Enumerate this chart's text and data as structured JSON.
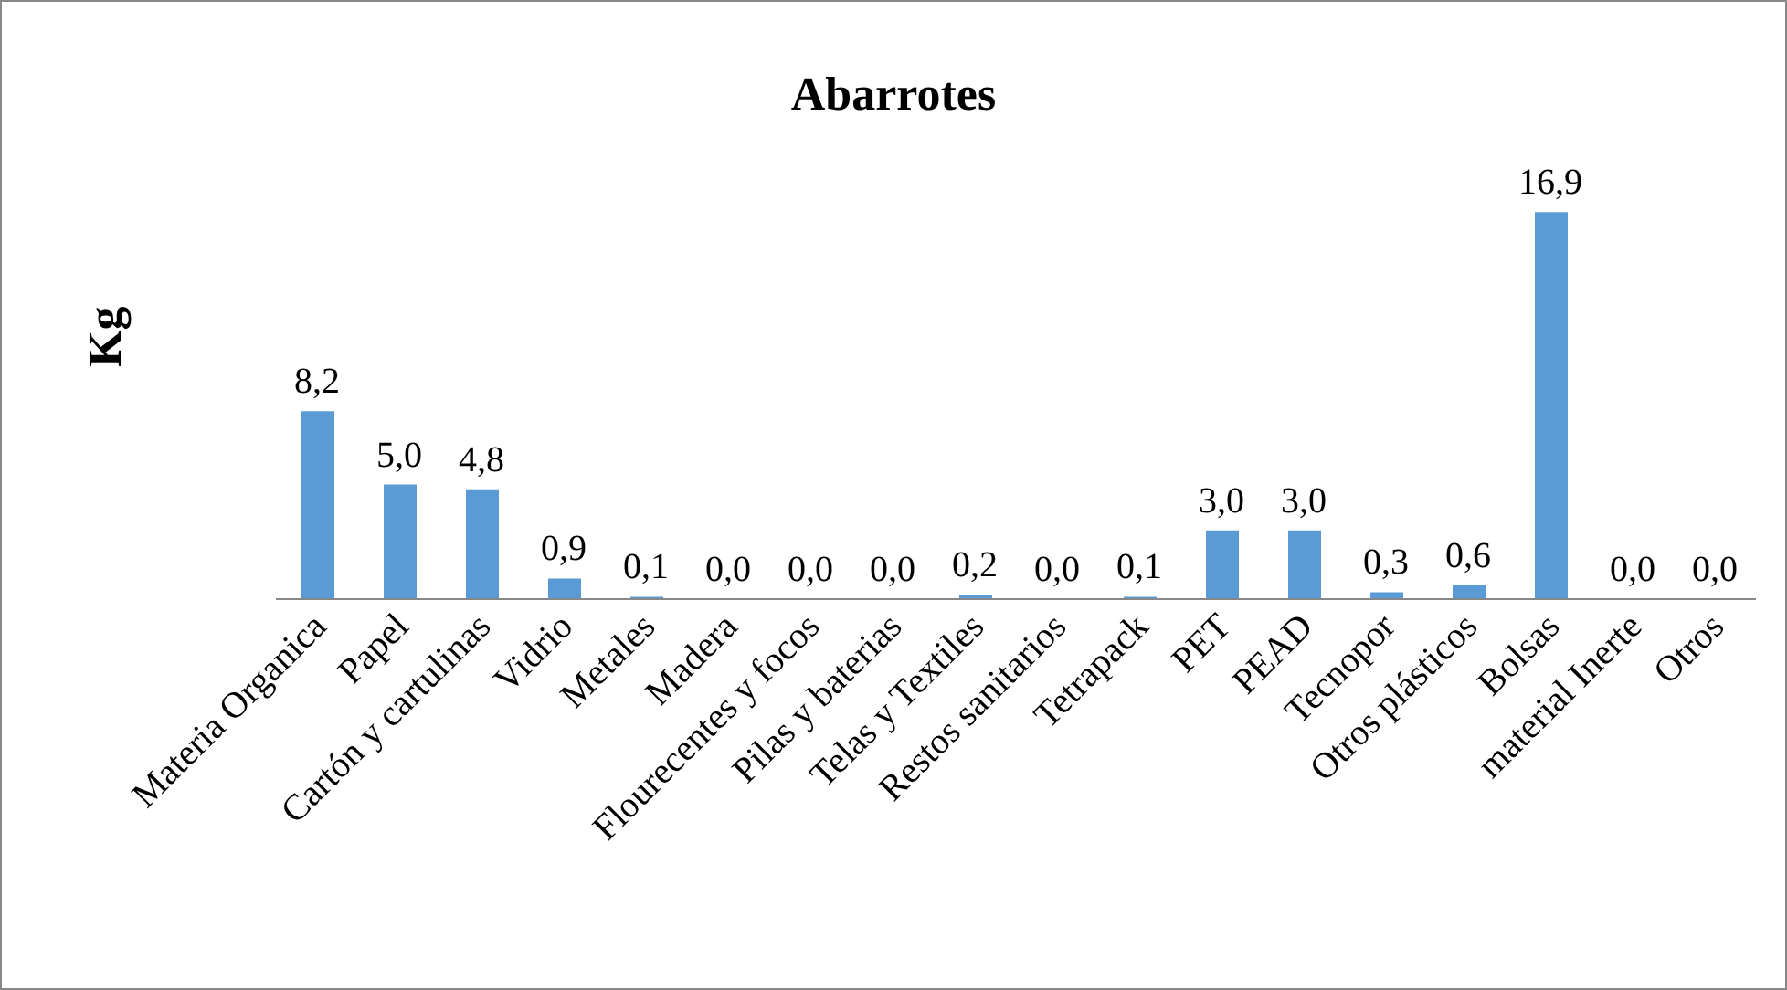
{
  "chart_data": {
    "type": "bar",
    "title": "Abarrotes",
    "ylabel": "Kg",
    "categories": [
      "Materia Organica",
      "Papel",
      "Cartón y cartulinas",
      "Vidrio",
      "Metales",
      "Madera",
      "Flourecentes y focos",
      "Pilas y baterias",
      "Telas y Textiles",
      "Restos sanitarios",
      "Tetrapack",
      "PET",
      "PEAD",
      "Tecnopor",
      "Otros plásticos",
      "Bolsas",
      "material Inerte",
      "Otros"
    ],
    "values": [
      8.2,
      5.0,
      4.8,
      0.9,
      0.1,
      0.0,
      0.0,
      0.0,
      0.2,
      0.0,
      0.1,
      3.0,
      3.0,
      0.3,
      0.6,
      16.9,
      0.0,
      0.0
    ],
    "value_labels": [
      "8,2",
      "5,0",
      "4,8",
      "0,9",
      "0,1",
      "0,0",
      "0,0",
      "0,0",
      "0,2",
      "0,0",
      "0,1",
      "3,0",
      "3,0",
      "0,3",
      "0,6",
      "16,9",
      "0,0",
      "0,0"
    ],
    "color": "#5b9bd5",
    "tick_labels": "x"
  }
}
